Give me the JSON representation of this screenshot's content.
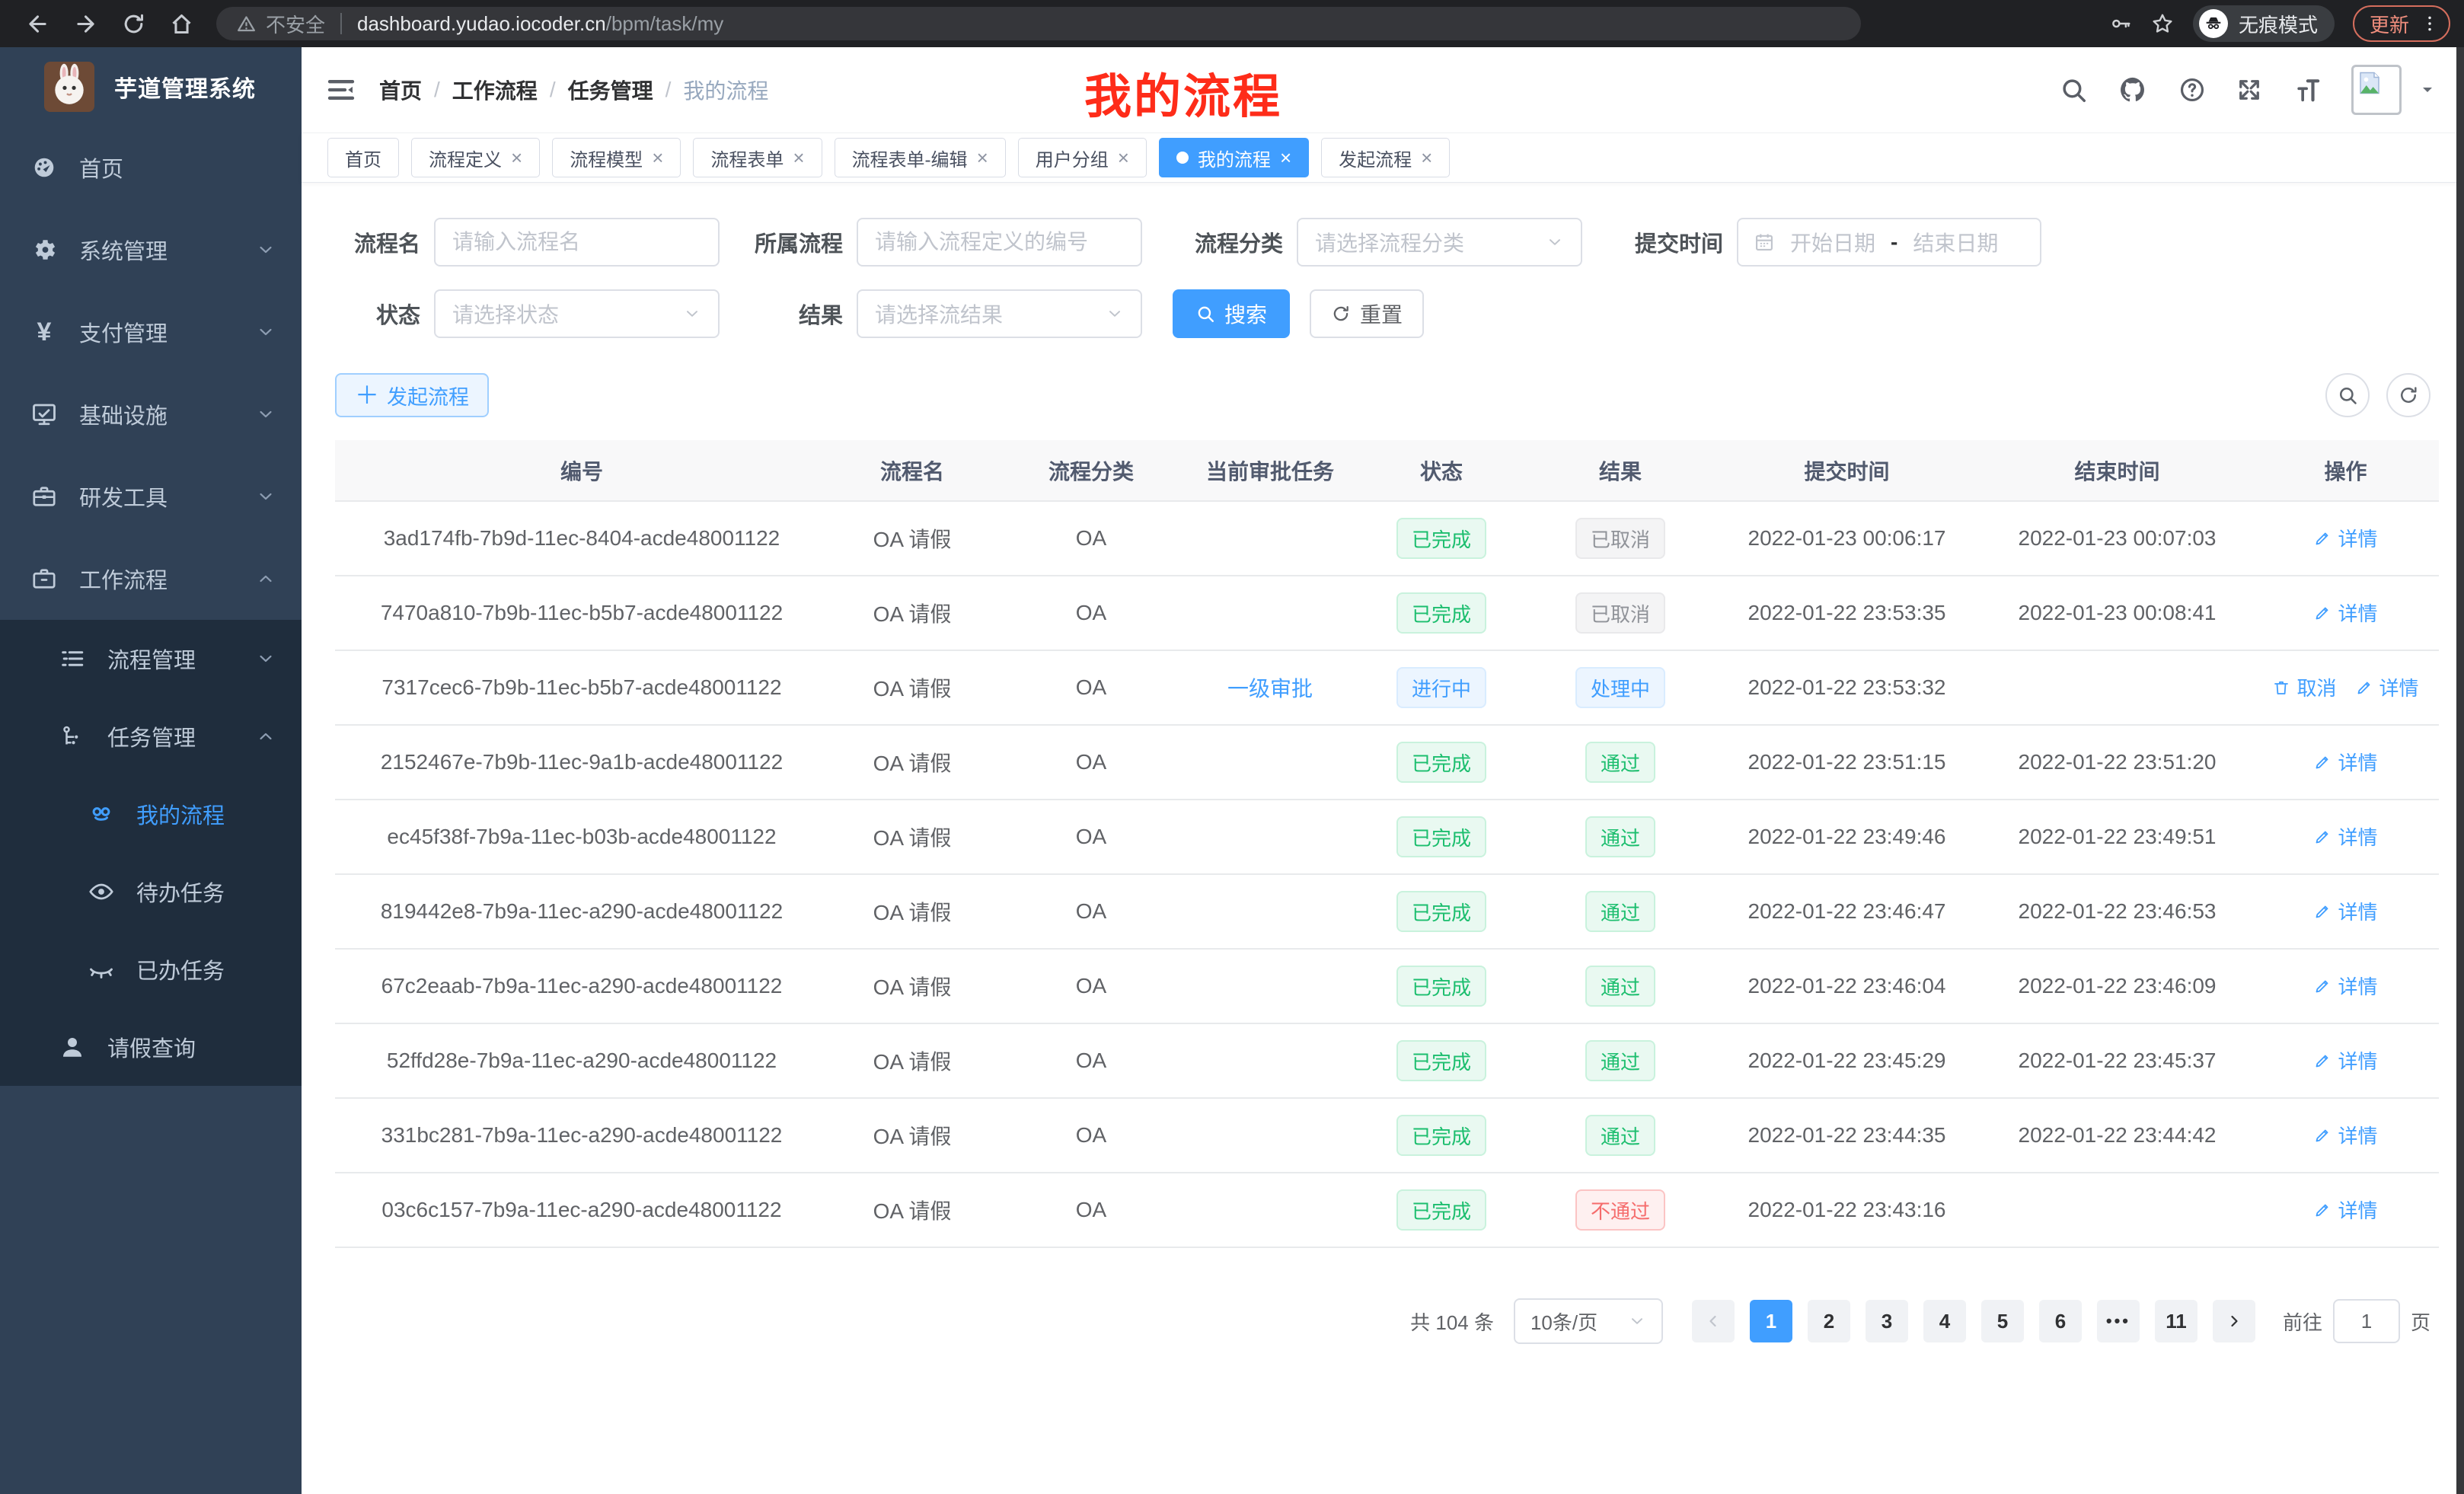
{
  "browser": {
    "security_label": "不安全",
    "url_host": "dashboard.yudao.iocoder.cn",
    "url_path": "/bpm/task/my",
    "incognito_label": "无痕模式",
    "update_label": "更新"
  },
  "sidebar": {
    "title": "芋道管理系统",
    "menu": [
      {
        "key": "home",
        "label": "首页",
        "icon": "dashboard-icon",
        "level": 1,
        "sub": false
      },
      {
        "key": "system",
        "label": "系统管理",
        "icon": "gear-icon",
        "level": 1,
        "sub": false,
        "arrow": "down"
      },
      {
        "key": "payment",
        "label": "支付管理",
        "icon": "yen-icon",
        "level": 1,
        "sub": false,
        "arrow": "down"
      },
      {
        "key": "infrastructure",
        "label": "基础设施",
        "icon": "monitor-icon",
        "level": 1,
        "sub": false,
        "arrow": "down"
      },
      {
        "key": "dev-tools",
        "label": "研发工具",
        "icon": "toolbox-icon",
        "level": 1,
        "sub": false,
        "arrow": "down"
      },
      {
        "key": "workflow",
        "label": "工作流程",
        "icon": "briefcase-icon",
        "level": 1,
        "sub": false,
        "arrow": "up"
      },
      {
        "key": "process-mgmt",
        "label": "流程管理",
        "icon": "list-icon",
        "level": 2,
        "sub": true,
        "arrow": "down"
      },
      {
        "key": "task-mgmt",
        "label": "任务管理",
        "icon": "flow-icon",
        "level": 2,
        "sub": true,
        "arrow": "up"
      },
      {
        "key": "my-process",
        "label": "我的流程",
        "icon": "robot-icon",
        "level": 3,
        "sub": true,
        "active": true
      },
      {
        "key": "todo-tasks",
        "label": "待办任务",
        "icon": "eye-icon",
        "level": 3,
        "sub": true
      },
      {
        "key": "done-tasks",
        "label": "已办任务",
        "icon": "eye-closed-icon",
        "level": 3,
        "sub": true
      },
      {
        "key": "leave-query",
        "label": "请假查询",
        "icon": "user-icon",
        "level": 2,
        "sub": true
      }
    ]
  },
  "navbar": {
    "breadcrumb": [
      "首页",
      "工作流程",
      "任务管理",
      "我的流程"
    ],
    "annotation": "我的流程"
  },
  "tabs": [
    {
      "key": "home",
      "label": "首页",
      "closable": false,
      "active": false
    },
    {
      "key": "process-definition",
      "label": "流程定义",
      "closable": true,
      "active": false
    },
    {
      "key": "process-model",
      "label": "流程模型",
      "closable": true,
      "active": false
    },
    {
      "key": "process-form",
      "label": "流程表单",
      "closable": true,
      "active": false
    },
    {
      "key": "process-form-edit",
      "label": "流程表单-编辑",
      "closable": true,
      "active": false
    },
    {
      "key": "user-group",
      "label": "用户分组",
      "closable": true,
      "active": false
    },
    {
      "key": "my-process",
      "label": "我的流程",
      "closable": true,
      "active": true
    },
    {
      "key": "start-process",
      "label": "发起流程",
      "closable": true,
      "active": false
    }
  ],
  "filters": {
    "name_label": "流程名",
    "name_placeholder": "请输入流程名",
    "definition_label": "所属流程",
    "definition_placeholder": "请输入流程定义的编号",
    "category_label": "流程分类",
    "category_placeholder": "请选择流程分类",
    "submit_time_label": "提交时间",
    "start_date_placeholder": "开始日期",
    "range_separator": "-",
    "end_date_placeholder": "结束日期",
    "status_label": "状态",
    "status_placeholder": "请选择状态",
    "result_label": "结果",
    "result_placeholder": "请选择流结果",
    "search_label": "搜索",
    "reset_label": "重置"
  },
  "toolbar": {
    "create_label": "发起流程"
  },
  "table": {
    "columns": [
      "编号",
      "流程名",
      "流程分类",
      "当前审批任务",
      "状态",
      "结果",
      "提交时间",
      "结束时间",
      "操作"
    ],
    "action_labels": {
      "detail": "详情",
      "cancel": "取消"
    },
    "rows": [
      {
        "id": "3ad174fb-7b9d-11ec-8404-acde48001122",
        "name": "OA 请假",
        "category": "OA",
        "task": "",
        "status": {
          "text": "已完成",
          "type": "success"
        },
        "result": {
          "text": "已取消",
          "type": "info"
        },
        "submit_time": "2022-01-23 00:06:17",
        "end_time": "2022-01-23 00:07:03",
        "actions": [
          "detail"
        ]
      },
      {
        "id": "7470a810-7b9b-11ec-b5b7-acde48001122",
        "name": "OA 请假",
        "category": "OA",
        "task": "",
        "status": {
          "text": "已完成",
          "type": "success"
        },
        "result": {
          "text": "已取消",
          "type": "info"
        },
        "submit_time": "2022-01-22 23:53:35",
        "end_time": "2022-01-23 00:08:41",
        "actions": [
          "detail"
        ]
      },
      {
        "id": "7317cec6-7b9b-11ec-b5b7-acde48001122",
        "name": "OA 请假",
        "category": "OA",
        "task": "一级审批",
        "status": {
          "text": "进行中",
          "type": "primary"
        },
        "result": {
          "text": "处理中",
          "type": "primary"
        },
        "submit_time": "2022-01-22 23:53:32",
        "end_time": "",
        "actions": [
          "cancel",
          "detail"
        ]
      },
      {
        "id": "2152467e-7b9b-11ec-9a1b-acde48001122",
        "name": "OA 请假",
        "category": "OA",
        "task": "",
        "status": {
          "text": "已完成",
          "type": "success"
        },
        "result": {
          "text": "通过",
          "type": "success"
        },
        "submit_time": "2022-01-22 23:51:15",
        "end_time": "2022-01-22 23:51:20",
        "actions": [
          "detail"
        ]
      },
      {
        "id": "ec45f38f-7b9a-11ec-b03b-acde48001122",
        "name": "OA 请假",
        "category": "OA",
        "task": "",
        "status": {
          "text": "已完成",
          "type": "success"
        },
        "result": {
          "text": "通过",
          "type": "success"
        },
        "submit_time": "2022-01-22 23:49:46",
        "end_time": "2022-01-22 23:49:51",
        "actions": [
          "detail"
        ]
      },
      {
        "id": "819442e8-7b9a-11ec-a290-acde48001122",
        "name": "OA 请假",
        "category": "OA",
        "task": "",
        "status": {
          "text": "已完成",
          "type": "success"
        },
        "result": {
          "text": "通过",
          "type": "success"
        },
        "submit_time": "2022-01-22 23:46:47",
        "end_time": "2022-01-22 23:46:53",
        "actions": [
          "detail"
        ]
      },
      {
        "id": "67c2eaab-7b9a-11ec-a290-acde48001122",
        "name": "OA 请假",
        "category": "OA",
        "task": "",
        "status": {
          "text": "已完成",
          "type": "success"
        },
        "result": {
          "text": "通过",
          "type": "success"
        },
        "submit_time": "2022-01-22 23:46:04",
        "end_time": "2022-01-22 23:46:09",
        "actions": [
          "detail"
        ]
      },
      {
        "id": "52ffd28e-7b9a-11ec-a290-acde48001122",
        "name": "OA 请假",
        "category": "OA",
        "task": "",
        "status": {
          "text": "已完成",
          "type": "success"
        },
        "result": {
          "text": "通过",
          "type": "success"
        },
        "submit_time": "2022-01-22 23:45:29",
        "end_time": "2022-01-22 23:45:37",
        "actions": [
          "detail"
        ]
      },
      {
        "id": "331bc281-7b9a-11ec-a290-acde48001122",
        "name": "OA 请假",
        "category": "OA",
        "task": "",
        "status": {
          "text": "已完成",
          "type": "success"
        },
        "result": {
          "text": "通过",
          "type": "success"
        },
        "submit_time": "2022-01-22 23:44:35",
        "end_time": "2022-01-22 23:44:42",
        "actions": [
          "detail"
        ]
      },
      {
        "id": "03c6c157-7b9a-11ec-a290-acde48001122",
        "name": "OA 请假",
        "category": "OA",
        "task": "",
        "status": {
          "text": "已完成",
          "type": "success"
        },
        "result": {
          "text": "不通过",
          "type": "danger"
        },
        "submit_time": "2022-01-22 23:43:16",
        "end_time": "",
        "actions": [
          "detail"
        ]
      }
    ]
  },
  "pagination": {
    "total_text": "共 104 条",
    "page_size": "10条/页",
    "pages": [
      "1",
      "2",
      "3",
      "4",
      "5",
      "6",
      "more",
      "11"
    ],
    "active_page": "1",
    "goto_label": "前往",
    "goto_value": "1",
    "page_unit": "页"
  },
  "colors": {
    "accent": "#409eff",
    "success": "#1cbe6e",
    "danger": "#f56c6c",
    "info": "#909399",
    "sidebar_bg": "#304156",
    "submenu_bg": "#1f2d3d",
    "annotation_red": "#fe2c19"
  }
}
